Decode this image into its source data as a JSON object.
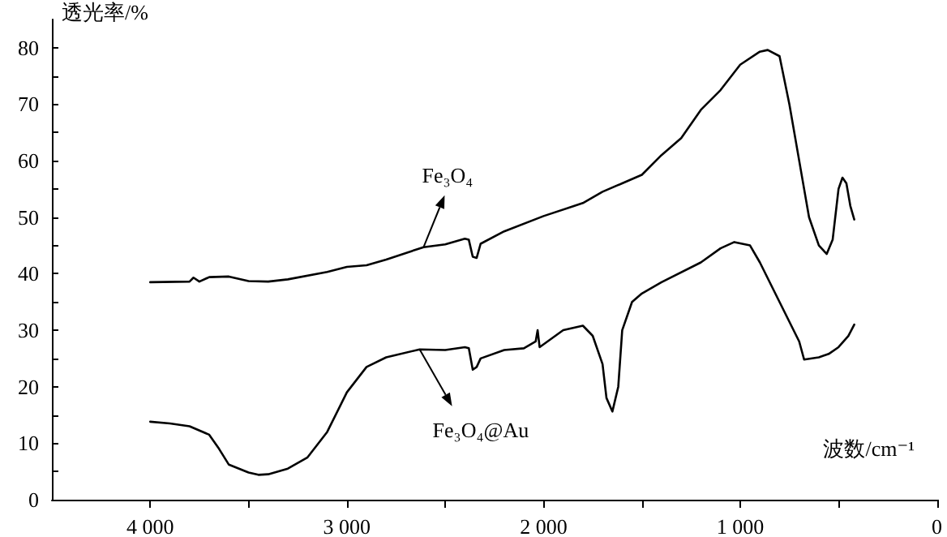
{
  "chart_data": {
    "type": "line",
    "xlabel": "波数/cm⁻¹",
    "ylabel": "透光率/%",
    "xlim": [
      4500,
      0
    ],
    "xticks": [
      {
        "value": 4000,
        "label": "4 000"
      },
      {
        "value": 3500,
        "label": null
      },
      {
        "value": 3000,
        "label": "3 000"
      },
      {
        "value": 2500,
        "label": null
      },
      {
        "value": 2000,
        "label": "2 000"
      },
      {
        "value": 1500,
        "label": null
      },
      {
        "value": 1000,
        "label": "1 000"
      },
      {
        "value": 500,
        "label": null
      },
      0
    ],
    "ylim": [
      0,
      85
    ],
    "yticks": [
      0,
      {
        "value": 5,
        "label": null
      },
      10,
      {
        "value": 15,
        "label": null
      },
      20,
      {
        "value": 25,
        "label": null
      },
      30,
      {
        "value": 35,
        "label": null
      },
      40,
      {
        "value": 45,
        "label": null
      },
      50,
      {
        "value": 55,
        "label": null
      },
      60,
      {
        "value": 65,
        "label": null
      },
      70,
      {
        "value": 75,
        "label": null
      },
      80
    ],
    "grid": false,
    "marker": "none",
    "line_style": "solid",
    "annotations": [
      {
        "text": "Fe₃O₄",
        "x": 2610,
        "y": 44.7
      },
      {
        "text": "Fe₃O₄@Au",
        "x": 2630,
        "y": 26.6
      }
    ],
    "series": [
      {
        "color": "#000000",
        "x": [
          4000,
          3800,
          3780,
          3750,
          3700,
          3600,
          3500,
          3400,
          3300,
          3100,
          3000,
          2900,
          2800,
          2610,
          2500,
          2400,
          2380,
          2360,
          2340,
          2320,
          2200,
          2000,
          1800,
          1700,
          1600,
          1500,
          1400,
          1300,
          1200,
          1100,
          1000,
          900,
          860,
          800,
          750,
          700,
          650,
          600,
          560,
          530,
          500,
          480,
          460,
          440,
          420
        ],
        "values": [
          38.5,
          38.6,
          39.3,
          38.6,
          39.4,
          39.5,
          38.7,
          38.6,
          39.0,
          40.3,
          41.2,
          41.5,
          42.5,
          44.7,
          45.2,
          46.2,
          46.0,
          43.0,
          42.8,
          45.3,
          47.5,
          50.2,
          52.5,
          54.5,
          56.0,
          57.5,
          61.0,
          64.0,
          69.0,
          72.5,
          77.0,
          79.3,
          79.6,
          78.5,
          70.0,
          60.0,
          50.0,
          45.0,
          43.5,
          46.0,
          55.0,
          57.0,
          56.0,
          52.0,
          49.6
        ]
      },
      {
        "color": "#000000",
        "x": [
          4000,
          3900,
          3800,
          3700,
          3650,
          3600,
          3500,
          3450,
          3400,
          3300,
          3200,
          3100,
          3000,
          2900,
          2800,
          2630,
          2500,
          2400,
          2380,
          2360,
          2340,
          2320,
          2200,
          2100,
          2040,
          2030,
          2020,
          1900,
          1800,
          1750,
          1700,
          1680,
          1650,
          1620,
          1600,
          1550,
          1500,
          1400,
          1200,
          1100,
          1030,
          950,
          900,
          800,
          700,
          675,
          600,
          550,
          500,
          450,
          420
        ],
        "values": [
          13.8,
          13.5,
          13.0,
          11.5,
          9.0,
          6.2,
          4.8,
          4.4,
          4.5,
          5.5,
          7.5,
          12.0,
          19.0,
          23.5,
          25.2,
          26.6,
          26.5,
          27.0,
          26.8,
          23.0,
          23.5,
          25.0,
          26.5,
          26.8,
          28.0,
          30.0,
          27.0,
          30.0,
          30.8,
          29.0,
          24.0,
          18.0,
          15.6,
          20.0,
          30.0,
          35.0,
          36.5,
          38.5,
          42.0,
          44.5,
          45.6,
          45.0,
          42.0,
          35.0,
          28.0,
          24.8,
          25.2,
          25.8,
          27.0,
          29.0,
          31.0
        ]
      }
    ]
  }
}
